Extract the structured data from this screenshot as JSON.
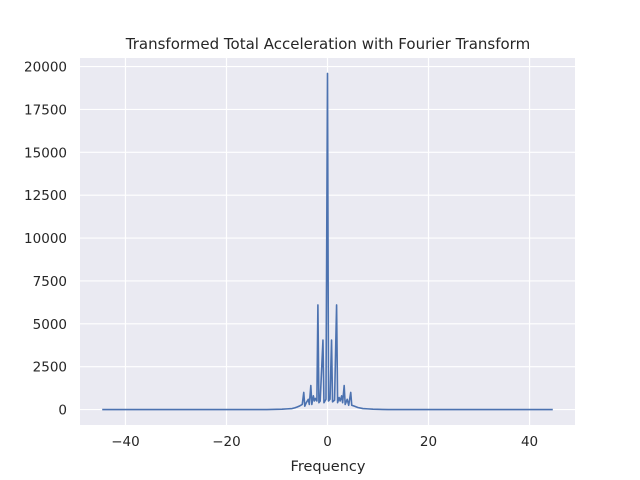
{
  "chart_data": {
    "type": "line",
    "title": "Transformed Total Acceleration with Fourier Transform",
    "xlabel": "Frequency",
    "ylabel": "",
    "xlim": [
      -49,
      49
    ],
    "ylim": [
      -900,
      20500
    ],
    "x_ticks": [
      -40,
      -20,
      0,
      20,
      40
    ],
    "x_tick_labels": [
      "−40",
      "−20",
      "0",
      "20",
      "40"
    ],
    "y_ticks": [
      0,
      2500,
      5000,
      7500,
      10000,
      12500,
      15000,
      17500,
      20000
    ],
    "y_tick_labels": [
      "0",
      "2500",
      "5000",
      "7500",
      "10000",
      "12500",
      "15000",
      "17500",
      "20000"
    ],
    "grid": true,
    "colors": {
      "line": "#4c72b0",
      "background": "#eaeaf2",
      "grid": "#ffffff"
    },
    "series": [
      {
        "points": [
          [
            -44.6,
            0
          ],
          [
            -40,
            0
          ],
          [
            -30,
            0
          ],
          [
            -20,
            0
          ],
          [
            -12,
            0
          ],
          [
            -9,
            20
          ],
          [
            -8,
            40
          ],
          [
            -7,
            60
          ],
          [
            -6.5,
            100
          ],
          [
            -6,
            150
          ],
          [
            -5.6,
            200
          ],
          [
            -5.3,
            250
          ],
          [
            -5.0,
            300
          ],
          [
            -4.7,
            1000
          ],
          [
            -4.5,
            200
          ],
          [
            -4.2,
            400
          ],
          [
            -3.8,
            600
          ],
          [
            -3.6,
            300
          ],
          [
            -3.3,
            1400
          ],
          [
            -3.1,
            300
          ],
          [
            -2.8,
            800
          ],
          [
            -2.6,
            500
          ],
          [
            -2.4,
            650
          ],
          [
            -2.1,
            500
          ],
          [
            -1.9,
            6100
          ],
          [
            -1.7,
            400
          ],
          [
            -1.45,
            500
          ],
          [
            -0.9,
            4050
          ],
          [
            -0.7,
            400
          ],
          [
            -0.3,
            600
          ],
          [
            0,
            19600
          ],
          [
            0.2,
            500
          ],
          [
            0.5,
            600
          ],
          [
            0.8,
            4050
          ],
          [
            1.0,
            450
          ],
          [
            1.4,
            550
          ],
          [
            1.8,
            6100
          ],
          [
            2.0,
            400
          ],
          [
            2.3,
            700
          ],
          [
            2.5,
            500
          ],
          [
            2.8,
            800
          ],
          [
            3.0,
            400
          ],
          [
            3.3,
            1400
          ],
          [
            3.5,
            300
          ],
          [
            3.9,
            600
          ],
          [
            4.2,
            250
          ],
          [
            4.6,
            1000
          ],
          [
            4.8,
            250
          ],
          [
            5.3,
            200
          ],
          [
            6,
            120
          ],
          [
            7,
            60
          ],
          [
            8,
            40
          ],
          [
            9,
            20
          ],
          [
            12,
            0
          ],
          [
            20,
            0
          ],
          [
            30,
            0
          ],
          [
            40,
            0
          ],
          [
            44.6,
            0
          ]
        ]
      }
    ]
  }
}
